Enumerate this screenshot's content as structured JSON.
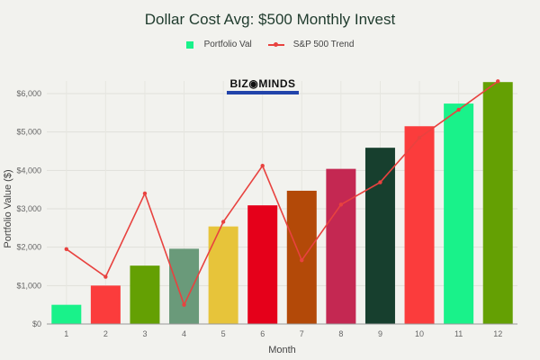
{
  "title": "Dollar Cost Avg: $500 Monthly Invest",
  "legend": {
    "bar_label": "Portfolio Val",
    "line_label": "S&P 500 Trend",
    "bar_color": "#19f28a",
    "line_color": "#e8423f"
  },
  "logo": {
    "text": "BIZ◉MINDS"
  },
  "chart_data": {
    "type": "bar",
    "title": "Dollar Cost Avg: $500 Monthly Invest",
    "xlabel": "Month",
    "ylabel": "Portfolio Value ($)",
    "ylim": [
      0,
      6300
    ],
    "yticks": [
      "$0",
      "$1,000",
      "$2,000",
      "$3,000",
      "$4,000",
      "$5,000",
      "$6,000"
    ],
    "categories": [
      "1",
      "2",
      "3",
      "4",
      "5",
      "6",
      "7",
      "8",
      "9",
      "10",
      "11",
      "12"
    ],
    "legend_position": "top",
    "grid": true,
    "series": [
      {
        "name": "Portfolio Val",
        "type": "bar",
        "values": [
          500,
          1000,
          1520,
          1960,
          2540,
          3090,
          3470,
          4040,
          4590,
          5150,
          5740,
          6300
        ],
        "colors": [
          "#19f28a",
          "#fb3c3c",
          "#64a003",
          "#6a9a7a",
          "#e7c43a",
          "#e5001a",
          "#b34908",
          "#c42852",
          "#173f2e",
          "#fb3c3c",
          "#19f28a",
          "#64a003"
        ]
      },
      {
        "name": "S&P 500 Trend",
        "type": "line",
        "values": [
          1950,
          1230,
          3400,
          500,
          2660,
          4120,
          1660,
          3110,
          3690,
          4850,
          5580,
          6320
        ],
        "color": "#e8423f"
      }
    ]
  }
}
